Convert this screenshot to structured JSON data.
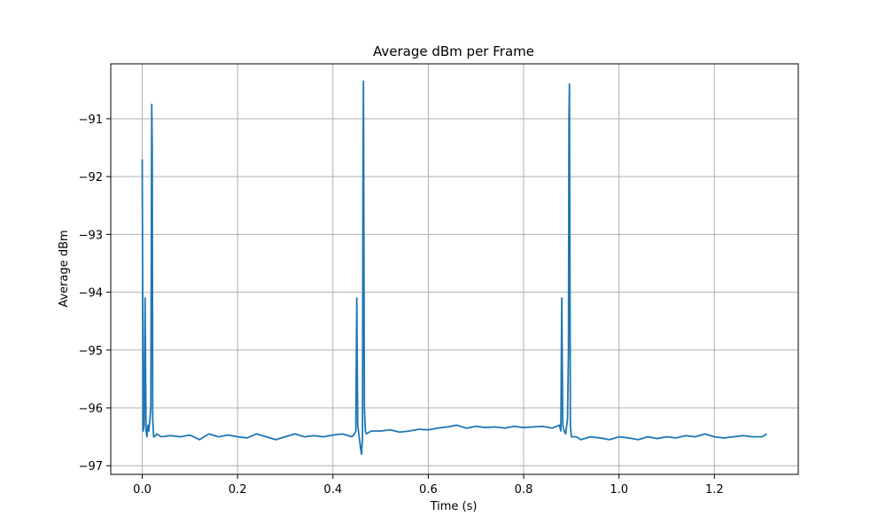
{
  "chart_data": {
    "type": "line",
    "title": "Average dBm per Frame",
    "xlabel": "Time (s)",
    "ylabel": "Average dBm",
    "xlim": [
      -0.066,
      1.376
    ],
    "ylim": [
      -97.15,
      -90.05
    ],
    "xticks": [
      0.0,
      0.2,
      0.4,
      0.6,
      0.8,
      1.0,
      1.2
    ],
    "xtick_labels": [
      "0.0",
      "0.2",
      "0.4",
      "0.6",
      "0.8",
      "1.0",
      "1.2"
    ],
    "yticks": [
      -97,
      -96,
      -95,
      -94,
      -93,
      -92,
      -91
    ],
    "ytick_labels": [
      "−97",
      "−96",
      "−95",
      "−94",
      "−93",
      "−92",
      "−91"
    ],
    "grid": true,
    "series_color": "#1f77b4",
    "series": [
      {
        "x": [
          0.0,
          0.002,
          0.004,
          0.006,
          0.008,
          0.01,
          0.012,
          0.014,
          0.016,
          0.018,
          0.02,
          0.021,
          0.022,
          0.024,
          0.026,
          0.03,
          0.04,
          0.06,
          0.08,
          0.1,
          0.12,
          0.14,
          0.16,
          0.18,
          0.2,
          0.22,
          0.24,
          0.26,
          0.28,
          0.3,
          0.32,
          0.34,
          0.36,
          0.38,
          0.4,
          0.42,
          0.44,
          0.445,
          0.448,
          0.45,
          0.452,
          0.455,
          0.458,
          0.46,
          0.462,
          0.463,
          0.464,
          0.466,
          0.468,
          0.47,
          0.48,
          0.5,
          0.52,
          0.54,
          0.56,
          0.58,
          0.6,
          0.62,
          0.64,
          0.66,
          0.68,
          0.7,
          0.72,
          0.74,
          0.76,
          0.78,
          0.8,
          0.82,
          0.84,
          0.86,
          0.875,
          0.878,
          0.88,
          0.882,
          0.885,
          0.888,
          0.892,
          0.894,
          0.895,
          0.896,
          0.898,
          0.9,
          0.91,
          0.92,
          0.94,
          0.96,
          0.98,
          1.0,
          1.02,
          1.04,
          1.06,
          1.08,
          1.1,
          1.12,
          1.14,
          1.16,
          1.18,
          1.2,
          1.22,
          1.24,
          1.26,
          1.28,
          1.3,
          1.31
        ],
        "y": [
          -91.7,
          -96.4,
          -96.3,
          -94.1,
          -96.4,
          -96.5,
          -96.3,
          -96.4,
          -96.2,
          -96.0,
          -90.75,
          -91.5,
          -96.2,
          -96.5,
          -96.5,
          -96.45,
          -96.5,
          -96.48,
          -96.5,
          -96.47,
          -96.55,
          -96.45,
          -96.5,
          -96.47,
          -96.5,
          -96.52,
          -96.45,
          -96.5,
          -96.55,
          -96.5,
          -96.45,
          -96.5,
          -96.48,
          -96.5,
          -96.47,
          -96.45,
          -96.5,
          -96.45,
          -96.4,
          -94.1,
          -96.3,
          -96.5,
          -96.7,
          -96.8,
          -96.5,
          -92.0,
          -90.35,
          -96.0,
          -96.4,
          -96.45,
          -96.4,
          -96.4,
          -96.38,
          -96.42,
          -96.4,
          -96.37,
          -96.38,
          -96.35,
          -96.33,
          -96.3,
          -96.35,
          -96.32,
          -96.34,
          -96.33,
          -96.35,
          -96.32,
          -96.34,
          -96.33,
          -96.32,
          -96.35,
          -96.3,
          -96.4,
          -94.1,
          -96.3,
          -96.4,
          -96.45,
          -96.2,
          -95.0,
          -91.0,
          -90.4,
          -96.3,
          -96.5,
          -96.5,
          -96.55,
          -96.5,
          -96.52,
          -96.55,
          -96.5,
          -96.52,
          -96.55,
          -96.5,
          -96.53,
          -96.5,
          -96.52,
          -96.48,
          -96.5,
          -96.45,
          -96.5,
          -96.52,
          -96.5,
          -96.48,
          -96.5,
          -96.5,
          -96.45
        ]
      }
    ]
  }
}
